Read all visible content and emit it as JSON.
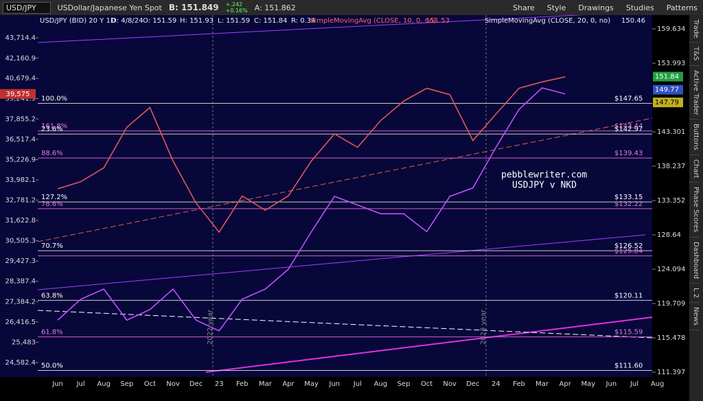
{
  "toolbar": {
    "symbol": "USD/JPY",
    "description": "USDollar/Japanese Yen Spot",
    "bid": "B: 151.849",
    "change": "+.242",
    "change_pct": "+0.16%",
    "last": "151.849",
    "ask": "A: 151.862",
    "buttons": [
      "Share",
      "Style",
      "Drawings",
      "Studies",
      "Patterns"
    ]
  },
  "chart_header": {
    "items": [
      "USD/JPY (BID) 20 Y 1D",
      "D: 4/8/24",
      "O: 151.59",
      "H: 151.93",
      "L: 151.59",
      "C: 151.84",
      "R: 0.34"
    ],
    "sma10": "SimpleMovingAvg (CLOSE, 10, 0, no)",
    "sma10_value": "151.53",
    "sma20": "SimpleMovingAvg (CLOSE, 20, 0, no)",
    "sma20_value": "150.46"
  },
  "side_tabs": [
    "Trade",
    "T&S",
    "Active Trader",
    "Buttons",
    "Chart",
    "Phase Scores",
    "Dashboard",
    "L 2",
    "News"
  ],
  "annotations": {
    "site": "pebblewriter.com",
    "subtitle": "USDJPY v NKD",
    "year_2022": "2022 year",
    "year_2023": "2023 year",
    "nkd_last": "39,575",
    "price_boxes": [
      "151.84",
      "149.77",
      "147.79"
    ]
  },
  "chart_data": {
    "type": "line",
    "log_scale": true,
    "categories": [
      "Jun",
      "Jul",
      "Aug",
      "Sep",
      "Oct",
      "Nov",
      "Dec",
      "23",
      "Feb",
      "Mar",
      "Apr",
      "May",
      "Jun",
      "Jul",
      "Aug",
      "Sep",
      "Oct",
      "Nov",
      "Dec",
      "24",
      "Feb",
      "Mar",
      "Apr",
      "May",
      "Jun",
      "Jul",
      "Aug"
    ],
    "series": [
      {
        "name": "USD/JPY",
        "color": "#e05858",
        "values": [
          135,
          136,
          138,
          144,
          147,
          139,
          133,
          129,
          134,
          132,
          134,
          139,
          143,
          141,
          145,
          148,
          150,
          149,
          142,
          146,
          150,
          151,
          151.8,
          null,
          null,
          null,
          null
        ]
      },
      {
        "name": "NKD",
        "color": "#c050ff",
        "axis": "y2",
        "values": [
          26500,
          27500,
          28000,
          26500,
          27000,
          28000,
          26500,
          26000,
          27500,
          28000,
          29000,
          31000,
          33000,
          32500,
          32000,
          32000,
          31000,
          33000,
          33500,
          36000,
          38500,
          40000,
          39575,
          null,
          null,
          null,
          null
        ]
      }
    ],
    "ylim": [
      110.84,
      161.95
    ],
    "yticks": [
      159.634,
      153.993,
      143.301,
      138.237,
      133.352,
      128.64,
      124.094,
      119.709,
      115.478,
      111.397
    ],
    "y2lim": [
      23960,
      45508
    ],
    "y2ticks": [
      {
        "value": 43714.4,
        "label": "43,714.4"
      },
      {
        "value": 42160.9,
        "label": "42,160.9"
      },
      {
        "value": 40679.4,
        "label": "40,679.4"
      },
      {
        "value": 39241.9,
        "label": "39,241.9"
      },
      {
        "value": 37855.2,
        "label": "37,855.2"
      },
      {
        "value": 36517.4,
        "label": "36,517.4"
      },
      {
        "value": 35226.9,
        "label": "35,226.9"
      },
      {
        "value": 33982.1,
        "label": "33,982.1"
      },
      {
        "value": 32781.2,
        "label": "32,781.2"
      },
      {
        "value": 31622.8,
        "label": "31,622.8"
      },
      {
        "value": 30505.3,
        "label": "30,505.3"
      },
      {
        "value": 29427.3,
        "label": "29,427.3"
      },
      {
        "value": 28387.4,
        "label": "28,387.4"
      },
      {
        "value": 27384.2,
        "label": "27,384.2"
      },
      {
        "value": 26416.5,
        "label": "26,416.5"
      },
      {
        "value": 25483,
        "label": "25,483"
      },
      {
        "value": 24582.4,
        "label": "24,582.4"
      }
    ],
    "fib_levels": [
      {
        "value": 147.65,
        "label": "$147.65",
        "percent": "100.0%"
      },
      {
        "value": 143.44,
        "label": "$143.44",
        "percent": "161.8%"
      },
      {
        "value": 142.97,
        "label": "$142.97",
        "percent": "23.6%"
      },
      {
        "value": 139.43,
        "label": "$139.43",
        "percent": "88.6%"
      },
      {
        "value": 133.15,
        "label": "$133.15",
        "percent": "127.2%"
      },
      {
        "value": 132.22,
        "label": "$132.22",
        "percent": "78.6%"
      },
      {
        "value": 126.52,
        "label": "$126.52",
        "percent": "70.7%"
      },
      {
        "value": 125.84,
        "label": "$125.84"
      },
      {
        "value": 120.11,
        "label": "$120.11",
        "percent": "63.8%"
      },
      {
        "value": 115.59,
        "label": "$115.59",
        "percent": "61.8%"
      },
      {
        "value": 111.6,
        "label": "$111.60",
        "percent": "50.0%"
      }
    ]
  }
}
